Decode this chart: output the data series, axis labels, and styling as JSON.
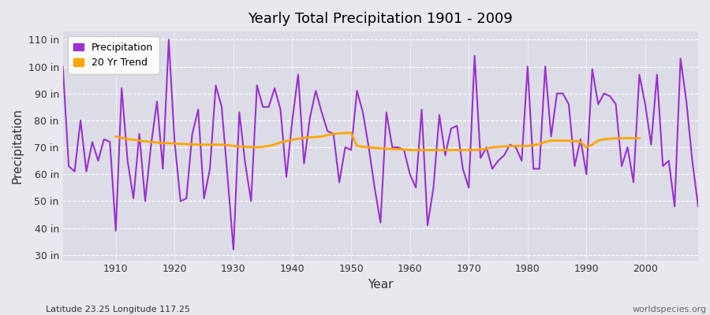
{
  "title": "Yearly Total Precipitation 1901 - 2009",
  "xlabel": "Year",
  "ylabel": "Precipitation",
  "caption_left": "Latitude 23.25 Longitude 117.25",
  "caption_right": "worldspecies.org",
  "precip_color": "#9B30D0",
  "trend_color": "#FFA500",
  "bg_color": "#E8E8EE",
  "plot_bg": "#DCDCE6",
  "ylim": [
    28,
    113
  ],
  "yticks": [
    30,
    40,
    50,
    60,
    70,
    80,
    90,
    100,
    110
  ],
  "xlim": [
    1901,
    2009
  ],
  "years": [
    1901,
    1902,
    1903,
    1904,
    1905,
    1906,
    1907,
    1908,
    1909,
    1910,
    1911,
    1912,
    1913,
    1914,
    1915,
    1916,
    1917,
    1918,
    1919,
    1920,
    1921,
    1922,
    1923,
    1924,
    1925,
    1926,
    1927,
    1928,
    1929,
    1930,
    1931,
    1932,
    1933,
    1934,
    1935,
    1936,
    1937,
    1938,
    1939,
    1940,
    1941,
    1942,
    1943,
    1944,
    1945,
    1946,
    1947,
    1948,
    1949,
    1950,
    1951,
    1952,
    1953,
    1954,
    1955,
    1956,
    1957,
    1958,
    1959,
    1960,
    1961,
    1962,
    1963,
    1964,
    1965,
    1966,
    1967,
    1968,
    1969,
    1970,
    1971,
    1972,
    1973,
    1974,
    1975,
    1976,
    1977,
    1978,
    1979,
    1980,
    1981,
    1982,
    1983,
    1984,
    1985,
    1986,
    1987,
    1988,
    1989,
    1990,
    1991,
    1992,
    1993,
    1994,
    1995,
    1996,
    1997,
    1998,
    1999,
    2000,
    2001,
    2002,
    2003,
    2004,
    2005,
    2006,
    2007,
    2008,
    2009
  ],
  "precip": [
    100,
    63,
    61,
    80,
    61,
    72,
    65,
    73,
    72,
    39,
    92,
    65,
    51,
    75,
    50,
    71,
    87,
    62,
    110,
    72,
    50,
    51,
    75,
    84,
    51,
    62,
    93,
    85,
    59,
    32,
    83,
    64,
    50,
    93,
    85,
    85,
    92,
    84,
    59,
    80,
    97,
    64,
    81,
    91,
    83,
    76,
    75,
    57,
    70,
    69,
    91,
    83,
    70,
    55,
    42,
    83,
    70,
    70,
    69,
    60,
    55,
    84,
    41,
    55,
    82,
    67,
    77,
    78,
    62,
    55,
    104,
    66,
    70,
    62,
    65,
    67,
    71,
    70,
    65,
    100,
    62,
    62,
    100,
    74,
    90,
    90,
    86,
    63,
    73,
    60,
    99,
    86,
    90,
    89,
    86,
    63,
    70,
    57,
    97,
    86,
    71,
    97,
    63,
    65,
    48,
    103,
    87,
    65,
    48
  ],
  "trend_years": [
    1910,
    1911,
    1912,
    1913,
    1914,
    1915,
    1916,
    1917,
    1918,
    1919,
    1920,
    1921,
    1922,
    1923,
    1924,
    1925,
    1926,
    1927,
    1928,
    1929,
    1930,
    1931,
    1932,
    1933,
    1934,
    1935,
    1936,
    1937,
    1938,
    1939,
    1940,
    1941,
    1942,
    1943,
    1944,
    1945,
    1946,
    1947,
    1948,
    1949,
    1950,
    1951,
    1952,
    1953,
    1954,
    1955,
    1956,
    1957,
    1958,
    1959,
    1960,
    1961,
    1962,
    1963,
    1964,
    1965,
    1966,
    1967,
    1968,
    1969,
    1970,
    1971,
    1972,
    1973,
    1974,
    1975,
    1976,
    1977,
    1978,
    1979,
    1980,
    1981,
    1982,
    1983,
    1984,
    1985,
    1986,
    1987,
    1988,
    1989,
    1990,
    1991,
    1992,
    1993,
    1994,
    1995,
    1996,
    1997,
    1998,
    1999
  ],
  "trend": [
    74.0,
    73.5,
    73.0,
    72.8,
    72.5,
    72.2,
    72.0,
    71.8,
    71.6,
    71.5,
    71.4,
    71.3,
    71.2,
    71.1,
    71.0,
    71.0,
    71.0,
    71.0,
    71.0,
    70.8,
    70.5,
    70.3,
    70.2,
    70.1,
    70.0,
    70.2,
    70.5,
    71.0,
    71.8,
    72.3,
    72.8,
    73.2,
    73.5,
    73.7,
    73.8,
    74.0,
    74.5,
    75.0,
    75.2,
    75.3,
    75.4,
    70.5,
    70.2,
    70.0,
    69.8,
    69.6,
    69.5,
    69.4,
    69.3,
    69.2,
    69.0,
    69.0,
    69.0,
    69.0,
    69.0,
    69.0,
    69.0,
    69.0,
    69.0,
    69.0,
    69.0,
    69.0,
    69.2,
    69.5,
    70.0,
    70.2,
    70.3,
    70.4,
    70.5,
    70.5,
    70.5,
    70.8,
    71.2,
    72.0,
    72.5,
    72.5,
    72.5,
    72.5,
    72.3,
    72.0,
    70.0,
    71.0,
    72.5,
    73.0,
    73.2,
    73.3,
    73.4,
    73.4,
    73.4,
    73.4
  ]
}
